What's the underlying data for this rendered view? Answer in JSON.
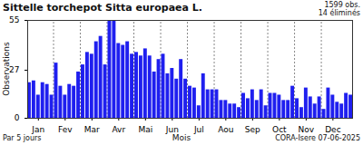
{
  "chart_data": {
    "type": "bar",
    "title": "Sittelle torchepot  Sitta europaea L.",
    "subtitle": [
      "1599 obs.",
      "14 éliminés"
    ],
    "x_label": "Mois",
    "y_label": "Observations",
    "annotations": [
      "Par 5 jours",
      "CORA-Isere 07-06-2025"
    ],
    "categories": [
      null,
      null,
      "Jan",
      null,
      null,
      null,
      null,
      null,
      "Fev",
      null,
      null,
      null,
      null,
      null,
      "Mar",
      null,
      null,
      null,
      null,
      null,
      "Avr",
      null,
      null,
      null,
      null,
      null,
      "Mai",
      null,
      null,
      null,
      null,
      null,
      "Jun",
      null,
      null,
      null,
      null,
      null,
      "Jul",
      null,
      null,
      null,
      null,
      null,
      "Aou",
      null,
      null,
      null,
      null,
      null,
      "Sep",
      null,
      null,
      null,
      null,
      null,
      "Oct",
      null,
      null,
      null,
      null,
      null,
      "Nov",
      null,
      null,
      null,
      null,
      null,
      "Dec",
      null,
      null,
      null,
      null
    ],
    "values": [
      20,
      21,
      13,
      20,
      19,
      13,
      31,
      18,
      13,
      19,
      18,
      26,
      30,
      37,
      36,
      43,
      46,
      30,
      55,
      55,
      42,
      41,
      43,
      36,
      37,
      35,
      39,
      35,
      26,
      33,
      36,
      25,
      28,
      22,
      33,
      22,
      18,
      17,
      7,
      25,
      16,
      16,
      16,
      10,
      10,
      8,
      8,
      6,
      14,
      11,
      16,
      10,
      16,
      7,
      14,
      14,
      13,
      10,
      10,
      18,
      11,
      6,
      17,
      12,
      8,
      12,
      5,
      17,
      13,
      9,
      8,
      14,
      13
    ],
    "color": "#1f1fef",
    "ylim": [
      0,
      55
    ],
    "yticks": [
      0,
      27,
      55
    ],
    "grid": true
  }
}
